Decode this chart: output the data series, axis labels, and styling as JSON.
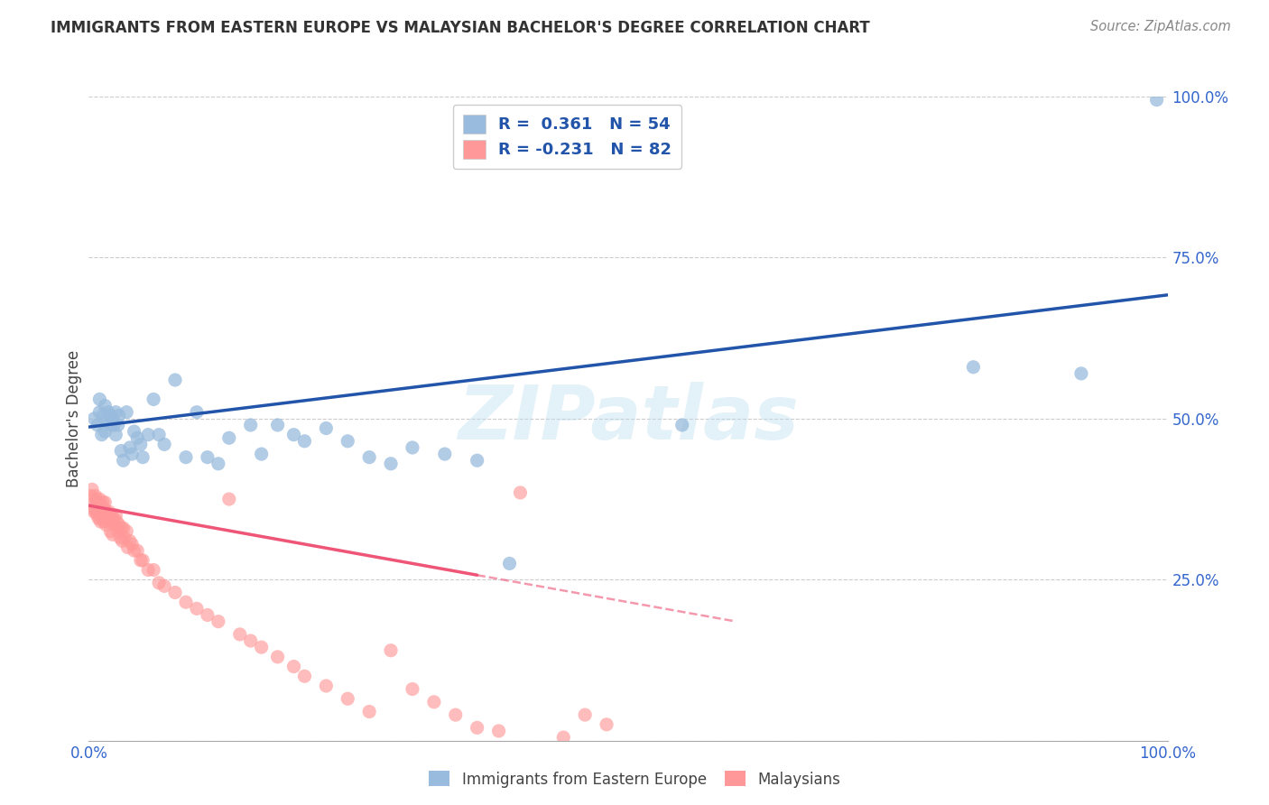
{
  "title": "IMMIGRANTS FROM EASTERN EUROPE VS MALAYSIAN BACHELOR'S DEGREE CORRELATION CHART",
  "source": "Source: ZipAtlas.com",
  "ylabel": "Bachelor's Degree",
  "blue_color": "#99BBDD",
  "pink_color": "#FF9999",
  "blue_line_color": "#2255AA",
  "pink_line_color": "#EE5577",
  "watermark": "ZIPatlas",
  "blue_intercept": 0.487,
  "blue_slope": 0.205,
  "pink_intercept": 0.365,
  "pink_slope": -0.3,
  "blue_scatter_x": [
    0.005,
    0.008,
    0.01,
    0.01,
    0.012,
    0.013,
    0.015,
    0.015,
    0.016,
    0.018,
    0.02,
    0.02,
    0.022,
    0.023,
    0.025,
    0.025,
    0.027,
    0.028,
    0.03,
    0.032,
    0.035,
    0.038,
    0.04,
    0.042,
    0.045,
    0.048,
    0.05,
    0.055,
    0.06,
    0.065,
    0.07,
    0.08,
    0.09,
    0.1,
    0.11,
    0.12,
    0.13,
    0.15,
    0.16,
    0.175,
    0.19,
    0.2,
    0.22,
    0.24,
    0.26,
    0.28,
    0.3,
    0.33,
    0.36,
    0.39,
    0.55,
    0.82,
    0.92,
    0.99
  ],
  "blue_scatter_y": [
    0.5,
    0.49,
    0.51,
    0.53,
    0.475,
    0.505,
    0.52,
    0.48,
    0.495,
    0.51,
    0.49,
    0.505,
    0.5,
    0.49,
    0.51,
    0.475,
    0.49,
    0.505,
    0.45,
    0.435,
    0.51,
    0.455,
    0.445,
    0.48,
    0.47,
    0.46,
    0.44,
    0.475,
    0.53,
    0.475,
    0.46,
    0.56,
    0.44,
    0.51,
    0.44,
    0.43,
    0.47,
    0.49,
    0.445,
    0.49,
    0.475,
    0.465,
    0.485,
    0.465,
    0.44,
    0.43,
    0.455,
    0.445,
    0.435,
    0.275,
    0.49,
    0.58,
    0.57,
    0.995
  ],
  "pink_scatter_x": [
    0.002,
    0.003,
    0.004,
    0.005,
    0.005,
    0.006,
    0.006,
    0.007,
    0.007,
    0.008,
    0.008,
    0.009,
    0.009,
    0.01,
    0.01,
    0.011,
    0.011,
    0.012,
    0.013,
    0.013,
    0.014,
    0.014,
    0.015,
    0.015,
    0.016,
    0.016,
    0.017,
    0.018,
    0.019,
    0.02,
    0.02,
    0.021,
    0.022,
    0.022,
    0.023,
    0.024,
    0.025,
    0.026,
    0.027,
    0.028,
    0.029,
    0.03,
    0.031,
    0.032,
    0.033,
    0.035,
    0.036,
    0.038,
    0.04,
    0.042,
    0.045,
    0.048,
    0.05,
    0.055,
    0.06,
    0.065,
    0.07,
    0.08,
    0.09,
    0.1,
    0.11,
    0.12,
    0.13,
    0.14,
    0.15,
    0.16,
    0.175,
    0.19,
    0.2,
    0.22,
    0.24,
    0.26,
    0.28,
    0.3,
    0.32,
    0.34,
    0.36,
    0.38,
    0.4,
    0.44,
    0.46,
    0.48
  ],
  "pink_scatter_y": [
    0.38,
    0.39,
    0.36,
    0.37,
    0.355,
    0.38,
    0.36,
    0.375,
    0.355,
    0.37,
    0.35,
    0.365,
    0.345,
    0.375,
    0.355,
    0.36,
    0.34,
    0.365,
    0.37,
    0.345,
    0.36,
    0.34,
    0.37,
    0.35,
    0.355,
    0.335,
    0.35,
    0.34,
    0.355,
    0.345,
    0.325,
    0.35,
    0.34,
    0.32,
    0.345,
    0.335,
    0.35,
    0.34,
    0.325,
    0.335,
    0.315,
    0.33,
    0.31,
    0.33,
    0.315,
    0.325,
    0.3,
    0.31,
    0.305,
    0.295,
    0.295,
    0.28,
    0.28,
    0.265,
    0.265,
    0.245,
    0.24,
    0.23,
    0.215,
    0.205,
    0.195,
    0.185,
    0.375,
    0.165,
    0.155,
    0.145,
    0.13,
    0.115,
    0.1,
    0.085,
    0.065,
    0.045,
    0.14,
    0.08,
    0.06,
    0.04,
    0.02,
    0.015,
    0.385,
    0.005,
    0.04,
    0.025
  ]
}
